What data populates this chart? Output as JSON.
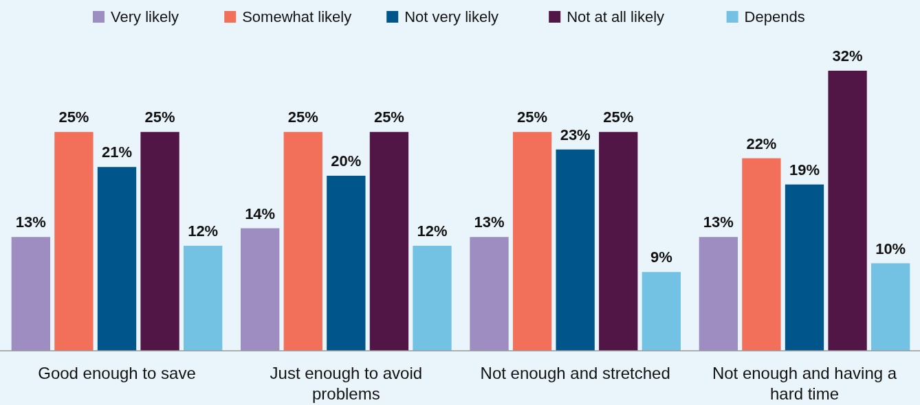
{
  "chart_data": {
    "type": "bar",
    "categories": [
      "Good enough to save",
      "Just enough to avoid problems",
      "Not enough and stretched",
      "Not enough and having a hard time"
    ],
    "series": [
      {
        "name": "Very likely",
        "color": "#9e8dc0",
        "values": [
          13,
          14,
          13,
          13
        ],
        "value_labels": [
          "13%",
          "14%",
          "13%",
          "13%"
        ]
      },
      {
        "name": "Somewhat likely",
        "color": "#f26f5a",
        "values": [
          25,
          25,
          25,
          22
        ],
        "value_labels": [
          "25%",
          "25%",
          "25%",
          "22%"
        ]
      },
      {
        "name": "Not very likely",
        "color": "#00558a",
        "values": [
          21,
          20,
          23,
          19
        ],
        "value_labels": [
          "21%",
          "20%",
          "23%",
          "19%"
        ]
      },
      {
        "name": "Not at all likely",
        "color": "#521646",
        "values": [
          25,
          25,
          25,
          32
        ],
        "value_labels": [
          "25%",
          "25%",
          "25%",
          "32%"
        ]
      },
      {
        "name": "Depends",
        "color": "#73c2e3",
        "values": [
          12,
          12,
          9,
          10
        ],
        "value_labels": [
          "12%",
          "12%",
          "9%",
          "10%"
        ]
      }
    ],
    "legend": "top",
    "grid": false
  }
}
